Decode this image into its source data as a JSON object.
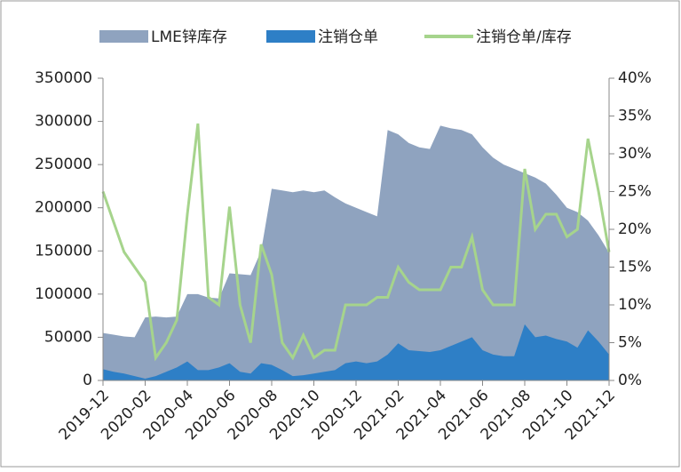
{
  "chart_data": {
    "type": "area-line",
    "categories": [
      "2019-12",
      null,
      null,
      null,
      "2020-02",
      null,
      null,
      null,
      "2020-04",
      null,
      null,
      null,
      "2020-06",
      null,
      null,
      null,
      "2020-08",
      null,
      null,
      null,
      "2020-10",
      null,
      null,
      null,
      "2020-12",
      null,
      null,
      null,
      "2021-02",
      null,
      null,
      null,
      "2021-04",
      null,
      null,
      null,
      "2021-06",
      null,
      null,
      null,
      "2021-08",
      null,
      null,
      null,
      "2021-10",
      null,
      null,
      null,
      "2021-12"
    ],
    "series": [
      {
        "name": "LME锌库存",
        "kind": "area",
        "color": "#8fa3bf",
        "values": [
          55000,
          53000,
          51000,
          50000,
          73000,
          74000,
          73000,
          74000,
          100000,
          100000,
          96000,
          95000,
          124000,
          123000,
          122000,
          150000,
          222000,
          220000,
          218000,
          220000,
          218000,
          220000,
          212000,
          205000,
          200000,
          195000,
          190000,
          290000,
          285000,
          275000,
          270000,
          268000,
          295000,
          292000,
          290000,
          285000,
          270000,
          258000,
          250000,
          245000,
          240000,
          235000,
          228000,
          215000,
          200000,
          195000,
          185000,
          168000,
          148000
        ]
      },
      {
        "name": "注销仓单",
        "kind": "area",
        "color": "#2e7fc6",
        "values": [
          13000,
          10000,
          8000,
          5000,
          2000,
          5000,
          10000,
          15000,
          22000,
          12000,
          12000,
          15000,
          20000,
          10000,
          8000,
          20000,
          18000,
          12000,
          5000,
          6000,
          8000,
          10000,
          12000,
          20000,
          22000,
          20000,
          22000,
          30000,
          43000,
          35000,
          34000,
          33000,
          35000,
          40000,
          45000,
          50000,
          35000,
          30000,
          28000,
          28000,
          65000,
          50000,
          52000,
          48000,
          45000,
          38000,
          58000,
          45000,
          30000
        ]
      },
      {
        "name": "注销仓单/库存",
        "kind": "line",
        "axis": "y2",
        "color": "#a6d48c",
        "values": [
          25,
          21,
          17,
          15,
          13,
          3,
          5,
          8,
          22,
          34,
          11,
          10,
          23,
          10,
          5,
          18,
          14,
          5,
          3,
          6,
          3,
          4,
          4,
          10,
          10,
          10,
          11,
          11,
          15,
          13,
          12,
          12,
          12,
          15,
          15,
          19,
          12,
          10,
          10,
          10,
          28,
          20,
          22,
          22,
          19,
          20,
          32,
          25,
          17
        ]
      }
    ],
    "ylim": [
      0,
      350000
    ],
    "yticks": [
      0,
      50000,
      100000,
      150000,
      200000,
      250000,
      300000,
      350000
    ],
    "y2lim": [
      0,
      40
    ],
    "y2ticks": [
      {
        "value": 0,
        "label": "0%"
      },
      {
        "value": 5,
        "label": "5%"
      },
      {
        "value": 10,
        "label": "10%"
      },
      {
        "value": 15,
        "label": "15%"
      },
      {
        "value": 20,
        "label": "20%"
      },
      {
        "value": 25,
        "label": "25%"
      },
      {
        "value": 30,
        "label": "30%"
      },
      {
        "value": 35,
        "label": "35%"
      },
      {
        "value": 40,
        "label": "40%"
      }
    ],
    "legend": "top"
  }
}
